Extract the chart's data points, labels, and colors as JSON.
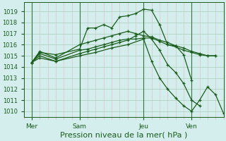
{
  "background_color": "#d4eeee",
  "grid_major_color": "#aaccbb",
  "grid_minor_color": "#ddbbbb",
  "line_color": "#1a5c1a",
  "xlabel": "Pression niveau de la mer( hPa )",
  "xlabel_fontsize": 8,
  "ytick_labels": [
    1010,
    1011,
    1012,
    1013,
    1014,
    1015,
    1016,
    1017,
    1018,
    1019
  ],
  "ylim": [
    1009.5,
    1019.8
  ],
  "xlim": [
    0,
    12.5
  ],
  "xtick_positions": [
    0.5,
    3.5,
    7.5,
    10.5
  ],
  "xtick_labels": [
    "Mer",
    "Sam",
    "Jeu",
    "Ven"
  ],
  "vline_positions": [
    0.5,
    3.5,
    7.5,
    10.5
  ],
  "series": [
    {
      "x": [
        0.5,
        1.0,
        2.0,
        3.5,
        4.0,
        4.5,
        5.0,
        5.5,
        6.0,
        6.5,
        7.0,
        7.5,
        8.0,
        8.5,
        9.0,
        9.5,
        10.0,
        10.5
      ],
      "y": [
        1014.4,
        1015.3,
        1015.1,
        1015.6,
        1017.5,
        1017.5,
        1017.8,
        1017.5,
        1018.5,
        1018.6,
        1018.8,
        1019.2,
        1019.1,
        1017.8,
        1016.0,
        1015.9,
        1015.1,
        1012.8
      ]
    },
    {
      "x": [
        0.5,
        1.0,
        2.0,
        3.5,
        4.0,
        4.5,
        5.0,
        5.5,
        6.0,
        6.5,
        7.0,
        7.5,
        8.0,
        8.5,
        9.0,
        9.5,
        10.0,
        10.5,
        11.0,
        11.5,
        12.0
      ],
      "y": [
        1014.4,
        1015.4,
        1014.8,
        1016.0,
        1016.2,
        1016.4,
        1016.6,
        1016.8,
        1017.0,
        1017.2,
        1017.0,
        1016.8,
        1016.7,
        1016.4,
        1016.2,
        1015.9,
        1015.7,
        1015.4,
        1015.2,
        1015.0,
        1015.0
      ]
    },
    {
      "x": [
        0.5,
        1.0,
        2.0,
        3.5,
        4.0,
        4.5,
        5.0,
        5.5,
        6.0,
        6.5,
        7.0,
        7.5,
        8.0,
        8.5,
        9.0,
        9.5,
        10.0,
        10.5,
        11.0,
        11.5,
        12.0
      ],
      "y": [
        1014.4,
        1015.2,
        1014.7,
        1015.5,
        1015.6,
        1015.8,
        1016.0,
        1016.2,
        1016.4,
        1016.5,
        1016.5,
        1016.6,
        1016.6,
        1016.3,
        1016.0,
        1015.8,
        1015.5,
        1015.3,
        1015.1,
        1015.0,
        1015.0
      ]
    },
    {
      "x": [
        0.5,
        1.0,
        2.0,
        3.5,
        4.0,
        4.5,
        5.0,
        5.5,
        6.0,
        6.5,
        7.0,
        7.5,
        8.0,
        8.5,
        9.0,
        9.5,
        10.0,
        10.5,
        11.0
      ],
      "y": [
        1014.4,
        1015.0,
        1014.5,
        1015.2,
        1015.4,
        1015.6,
        1015.8,
        1016.0,
        1016.2,
        1016.4,
        1016.8,
        1017.2,
        1016.5,
        1015.5,
        1014.2,
        1013.5,
        1012.5,
        1011.0,
        1010.5
      ]
    },
    {
      "x": [
        0.5,
        1.0,
        2.0,
        3.5,
        4.5,
        5.5,
        6.5,
        7.5,
        8.0,
        8.5,
        9.0,
        9.5,
        10.0,
        10.5,
        11.0,
        11.5,
        12.0,
        12.5
      ],
      "y": [
        1014.4,
        1014.8,
        1014.5,
        1015.0,
        1015.3,
        1015.7,
        1016.0,
        1016.5,
        1014.5,
        1013.0,
        1012.0,
        1011.2,
        1010.5,
        1010.0,
        1011.0,
        1012.2,
        1011.5,
        1009.8
      ]
    }
  ]
}
